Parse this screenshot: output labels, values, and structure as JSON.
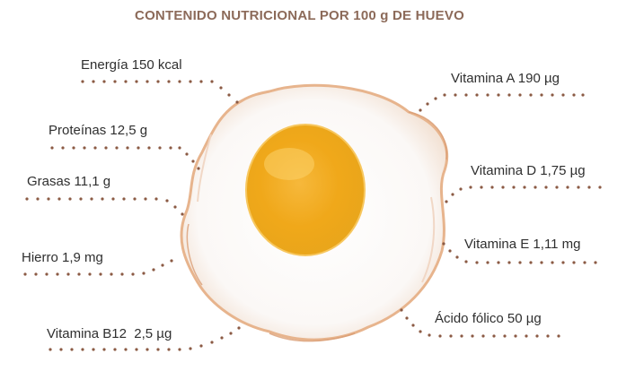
{
  "title": "CONTENIDO NUTRICIONAL POR 100 g  DE HUEVO",
  "colors": {
    "title": "#8c6a59",
    "dots": "#8b5a44",
    "yolk": "#f2b01e",
    "white_edge": "#e7b48d"
  },
  "nutrients_left": [
    {
      "label": "Energía 150 kcal"
    },
    {
      "label": "Proteínas 12,5 g"
    },
    {
      "label": "Grasas 11,1 g"
    },
    {
      "label": "Hierro 1,9 mg"
    },
    {
      "label": "Vitamina B12  2,5 µg"
    }
  ],
  "nutrients_right": [
    {
      "label": "Vitamina A 190 µg"
    },
    {
      "label": "Vitamina D 1,75 µg"
    },
    {
      "label": "Vitamina E 1,11 mg"
    },
    {
      "label": "Ácido fólico 50 µg"
    }
  ]
}
